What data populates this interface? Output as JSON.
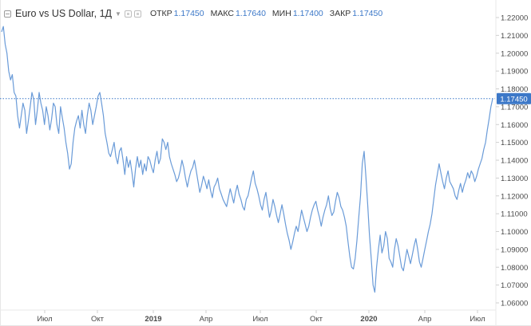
{
  "header": {
    "symbol": "Euro vs US Dollar, 1Д",
    "open_label": "ОТКР",
    "open_value": "1.17450",
    "high_label": "МАКС",
    "high_value": "1.17640",
    "low_label": "МИН",
    "low_value": "1.17400",
    "close_label": "ЗАКР",
    "close_value": "1.17450"
  },
  "colors": {
    "line": "#6a9bd8",
    "last_price_line": "#3c78c8",
    "price_tag": "#3c78c8",
    "axis_text": "#4a4a4a"
  },
  "chart_data": {
    "type": "line",
    "title": "Euro vs US Dollar, 1Д",
    "x_tick_labels": [
      "Июл",
      "Окт",
      "2019",
      "Апр",
      "Июл",
      "Окт",
      "2020",
      "Апр",
      "Июл"
    ],
    "x_ticks_bold": [
      "2019",
      "2020"
    ],
    "y_tick_labels": [
      "1.22000",
      "1.21000",
      "1.20000",
      "1.19000",
      "1.18000",
      "1.17000",
      "1.16000",
      "1.15000",
      "1.14000",
      "1.13000",
      "1.12000",
      "1.11000",
      "1.10000",
      "1.09000",
      "1.08000",
      "1.07000",
      "1.06000"
    ],
    "ylim": [
      1.055,
      1.225
    ],
    "last_price": "1.17450",
    "grid": false,
    "series": [
      {
        "values": [
          1.212,
          1.215,
          1.205,
          1.2,
          1.19,
          1.185,
          1.188,
          1.178,
          1.176,
          1.165,
          1.158,
          1.165,
          1.172,
          1.168,
          1.155,
          1.162,
          1.17,
          1.178,
          1.174,
          1.16,
          1.168,
          1.178,
          1.172,
          1.168,
          1.16,
          1.17,
          1.165,
          1.157,
          1.163,
          1.172,
          1.17,
          1.16,
          1.155,
          1.17,
          1.164,
          1.158,
          1.15,
          1.144,
          1.135,
          1.138,
          1.15,
          1.158,
          1.162,
          1.165,
          1.158,
          1.168,
          1.16,
          1.155,
          1.165,
          1.172,
          1.168,
          1.16,
          1.165,
          1.17,
          1.176,
          1.178,
          1.172,
          1.165,
          1.155,
          1.15,
          1.144,
          1.142,
          1.146,
          1.15,
          1.142,
          1.138,
          1.145,
          1.147,
          1.14,
          1.132,
          1.142,
          1.136,
          1.14,
          1.133,
          1.125,
          1.135,
          1.142,
          1.136,
          1.14,
          1.132,
          1.138,
          1.134,
          1.142,
          1.14,
          1.136,
          1.133,
          1.14,
          1.145,
          1.138,
          1.141,
          1.152,
          1.15,
          1.146,
          1.15,
          1.142,
          1.138,
          1.135,
          1.132,
          1.128,
          1.13,
          1.134,
          1.14,
          1.136,
          1.13,
          1.125,
          1.13,
          1.134,
          1.136,
          1.14,
          1.134,
          1.128,
          1.122,
          1.126,
          1.131,
          1.128,
          1.124,
          1.129,
          1.123,
          1.119,
          1.125,
          1.127,
          1.13,
          1.124,
          1.121,
          1.118,
          1.116,
          1.114,
          1.119,
          1.124,
          1.12,
          1.116,
          1.122,
          1.126,
          1.121,
          1.118,
          1.114,
          1.112,
          1.118,
          1.12,
          1.125,
          1.13,
          1.134,
          1.127,
          1.124,
          1.12,
          1.115,
          1.112,
          1.118,
          1.122,
          1.115,
          1.108,
          1.112,
          1.118,
          1.114,
          1.109,
          1.105,
          1.11,
          1.115,
          1.11,
          1.104,
          1.099,
          1.095,
          1.09,
          1.094,
          1.099,
          1.103,
          1.1,
          1.106,
          1.112,
          1.108,
          1.104,
          1.1,
          1.103,
          1.108,
          1.112,
          1.115,
          1.117,
          1.112,
          1.108,
          1.103,
          1.108,
          1.112,
          1.115,
          1.12,
          1.113,
          1.109,
          1.111,
          1.117,
          1.122,
          1.119,
          1.114,
          1.112,
          1.108,
          1.103,
          1.094,
          1.086,
          1.08,
          1.079,
          1.085,
          1.095,
          1.108,
          1.12,
          1.138,
          1.145,
          1.131,
          1.115,
          1.098,
          1.085,
          1.07,
          1.066,
          1.08,
          1.09,
          1.098,
          1.088,
          1.092,
          1.1,
          1.096,
          1.085,
          1.083,
          1.08,
          1.09,
          1.096,
          1.092,
          1.086,
          1.08,
          1.078,
          1.084,
          1.09,
          1.086,
          1.082,
          1.087,
          1.092,
          1.096,
          1.09,
          1.083,
          1.08,
          1.085,
          1.09,
          1.095,
          1.1,
          1.104,
          1.11,
          1.118,
          1.126,
          1.132,
          1.138,
          1.133,
          1.128,
          1.124,
          1.13,
          1.134,
          1.128,
          1.126,
          1.124,
          1.12,
          1.118,
          1.123,
          1.127,
          1.122,
          1.126,
          1.129,
          1.133,
          1.13,
          1.134,
          1.132,
          1.128,
          1.131,
          1.135,
          1.138,
          1.141,
          1.146,
          1.15,
          1.157,
          1.163,
          1.17,
          1.1745
        ]
      }
    ]
  }
}
